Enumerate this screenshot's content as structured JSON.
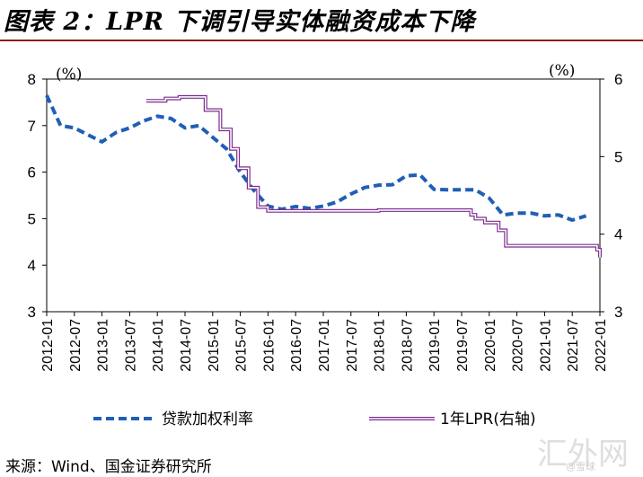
{
  "header": {
    "title": "图表 2：LPR 下调引导实体融资成本下降"
  },
  "chart_data": {
    "type": "line",
    "title": "图表 2：LPR 下调引导实体融资成本下降",
    "left_axis": {
      "unit": "(%)",
      "ylim": [
        3,
        8
      ],
      "ticks": [
        "3",
        "4",
        "5",
        "6",
        "7",
        "8"
      ]
    },
    "right_axis": {
      "unit": "(%)",
      "ylim": [
        3,
        6
      ],
      "ticks": [
        "3",
        "4",
        "5",
        "6"
      ]
    },
    "x_range": [
      2012.0,
      2022.0
    ],
    "categories": [
      "2012-01",
      "2012-07",
      "2013-01",
      "2013-07",
      "2014-01",
      "2014-07",
      "2015-01",
      "2015-07",
      "2016-01",
      "2016-07",
      "2017-01",
      "2017-07",
      "2018-01",
      "2018-07",
      "2019-01",
      "2019-07",
      "2020-01",
      "2020-07",
      "2021-01",
      "2021-07",
      "2022-01"
    ],
    "series": [
      {
        "name": "贷款加权利率",
        "axis": "left",
        "style": "dashed",
        "color": "#1f5fb8",
        "x": [
          2012.0,
          2012.25,
          2012.5,
          2012.75,
          2013.0,
          2013.25,
          2013.5,
          2013.75,
          2014.0,
          2014.25,
          2014.5,
          2014.75,
          2015.0,
          2015.25,
          2015.5,
          2015.75,
          2016.0,
          2016.25,
          2016.5,
          2016.75,
          2017.0,
          2017.25,
          2017.5,
          2017.75,
          2018.0,
          2018.25,
          2018.5,
          2018.75,
          2019.0,
          2019.25,
          2019.5,
          2019.75,
          2020.0,
          2020.25,
          2020.5,
          2020.75,
          2021.0,
          2021.25,
          2021.5,
          2021.75
        ],
        "values": [
          7.65,
          7.0,
          6.95,
          6.8,
          6.65,
          6.85,
          6.95,
          7.1,
          7.2,
          7.15,
          6.95,
          7.0,
          6.75,
          6.5,
          6.0,
          5.6,
          5.27,
          5.2,
          5.26,
          5.22,
          5.27,
          5.36,
          5.53,
          5.67,
          5.72,
          5.73,
          5.92,
          5.94,
          5.63,
          5.62,
          5.62,
          5.62,
          5.44,
          5.08,
          5.12,
          5.12,
          5.06,
          5.08,
          4.97,
          5.06
        ]
      },
      {
        "name": "1年LPR(右轴)",
        "axis": "right",
        "style": "step-double",
        "color": "#7b2d8e",
        "x": [
          2013.8,
          2014.15,
          2014.4,
          2014.87,
          2015.14,
          2015.33,
          2015.46,
          2015.65,
          2015.82,
          2016.0,
          2017.0,
          2018.0,
          2019.0,
          2019.58,
          2019.67,
          2019.75,
          2019.84,
          2019.92,
          2020.17,
          2020.3,
          2021.0,
          2021.5,
          2021.95,
          2022.0
        ],
        "values": [
          5.72,
          5.75,
          5.77,
          5.6,
          5.35,
          5.1,
          4.85,
          4.6,
          4.35,
          4.3,
          4.3,
          4.31,
          4.31,
          4.31,
          4.25,
          4.2,
          4.2,
          4.15,
          4.05,
          3.85,
          3.85,
          3.85,
          3.8,
          3.7
        ]
      }
    ],
    "legend": {
      "position": "bottom"
    }
  },
  "legend": {
    "items": [
      "贷款加权利率",
      "1年LPR(右轴)"
    ]
  },
  "footer": {
    "source": "来源：Wind、国金证券研究所"
  },
  "watermark": {
    "text": "汇外网",
    "sub": "@雪球"
  }
}
